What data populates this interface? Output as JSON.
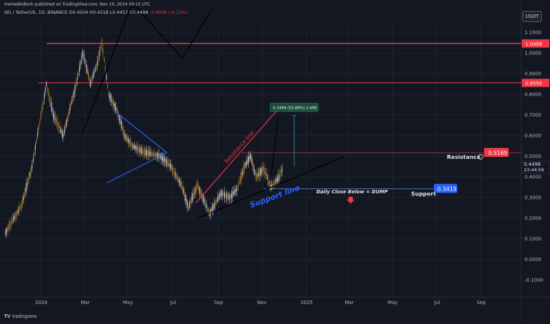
{
  "header": {
    "published_line": "HamedAzBork published on TradingView.com, Nov 10, 2024 00:15 UTC",
    "symbol": "SEI / TetherUS, 1D, BINANCE",
    "ohlc": "O0.4504 H0.4518 L0.4457 C0.4498",
    "change": "-0.0006 (-0.13%)",
    "currency": "USDT"
  },
  "footer": {
    "brand": "tradingview"
  },
  "chart_data": {
    "type": "candlestick",
    "y_axis": {
      "range": [
        -0.15,
        1.2
      ],
      "ticks": [
        -0.1,
        0.0,
        0.1,
        0.2,
        0.3,
        0.4,
        0.5,
        0.6,
        0.7,
        0.8,
        0.9,
        1.0,
        1.1
      ],
      "tick_labels": [
        "-0.1000",
        "0.0000",
        "0.1000",
        "0.2000",
        "0.3000",
        "0.4000",
        "0.5000",
        "0.6000",
        "0.7000",
        "0.8000",
        "0.9000",
        "1.0000",
        "1.1000"
      ]
    },
    "x_axis": {
      "range": [
        "2023-11-10",
        "2024-11-10"
      ],
      "tick_labels": [
        "2024",
        "Mar",
        "May",
        "Jul",
        "Sep",
        "Nov",
        "2025",
        "Mar",
        "May",
        "Jul",
        "Sep"
      ]
    },
    "price_series": [
      {
        "date": "2023-11-10",
        "price": 0.13
      },
      {
        "date": "2023-12-01",
        "price": 0.26
      },
      {
        "date": "2023-12-15",
        "price": 0.45
      },
      {
        "date": "2024-01-03",
        "price": 0.85
      },
      {
        "date": "2024-01-12",
        "price": 0.7
      },
      {
        "date": "2024-01-25",
        "price": 0.6
      },
      {
        "date": "2024-02-08",
        "price": 0.8
      },
      {
        "date": "2024-02-20",
        "price": 1.0
      },
      {
        "date": "2024-03-01",
        "price": 0.85
      },
      {
        "date": "2024-03-10",
        "price": 0.95
      },
      {
        "date": "2024-03-16",
        "price": 1.05
      },
      {
        "date": "2024-03-25",
        "price": 0.8
      },
      {
        "date": "2024-04-05",
        "price": 0.72
      },
      {
        "date": "2024-04-15",
        "price": 0.6
      },
      {
        "date": "2024-04-25",
        "price": 0.55
      },
      {
        "date": "2024-05-10",
        "price": 0.52
      },
      {
        "date": "2024-06-01",
        "price": 0.5
      },
      {
        "date": "2024-06-15",
        "price": 0.45
      },
      {
        "date": "2024-06-30",
        "price": 0.35
      },
      {
        "date": "2024-07-08",
        "price": 0.25
      },
      {
        "date": "2024-07-20",
        "price": 0.36
      },
      {
        "date": "2024-08-05",
        "price": 0.22
      },
      {
        "date": "2024-08-20",
        "price": 0.32
      },
      {
        "date": "2024-09-01",
        "price": 0.3
      },
      {
        "date": "2024-09-10",
        "price": 0.34
      },
      {
        "date": "2024-09-20",
        "price": 0.45
      },
      {
        "date": "2024-09-28",
        "price": 0.5
      },
      {
        "date": "2024-10-05",
        "price": 0.4
      },
      {
        "date": "2024-10-15",
        "price": 0.44
      },
      {
        "date": "2024-10-25",
        "price": 0.35
      },
      {
        "date": "2024-11-05",
        "price": 0.4
      },
      {
        "date": "2024-11-10",
        "price": 0.45
      }
    ],
    "horizontal_levels": [
      {
        "value": 1.0458,
        "label": "1.0458",
        "color": "#f23645"
      },
      {
        "value": 0.855,
        "label": "0.8550",
        "color": "#f23645"
      },
      {
        "value": 0.5165,
        "label": "0.5165",
        "color": "#f23645",
        "annotation": "Resistance"
      },
      {
        "value": 0.3419,
        "label": "0.3419",
        "color": "#2962ff",
        "annotation": "Support"
      }
    ],
    "current_price": {
      "value": 0.4498,
      "label": "0.4498",
      "countdown": "23:44:59"
    },
    "annotations": {
      "resistance_line": "Resistance line",
      "support_line": "Support line",
      "daily_close": "Daily Close Below = DUMP",
      "measure_box": "0.2499 (55.86%) 2,499"
    }
  }
}
